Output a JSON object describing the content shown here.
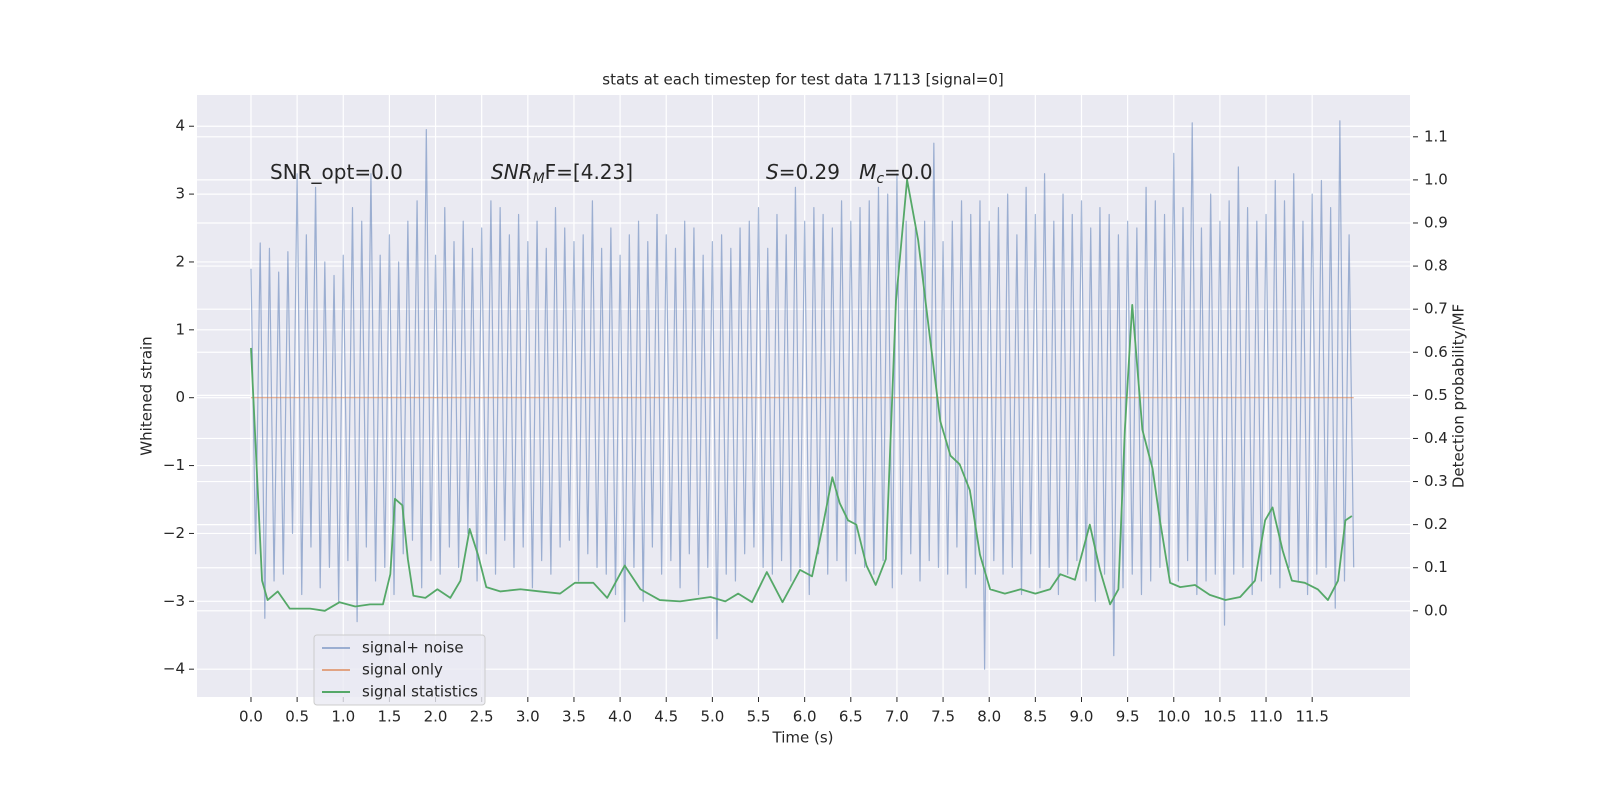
{
  "chart_data": {
    "type": "line",
    "title": "stats at each timestep for test data 17113 [signal=0]",
    "xlabel": "Time (s)",
    "ylabel": "Whitened strain",
    "y2label": "Detection probability/MF",
    "annotations": [
      [
        {
          "text": "SNR_opt=0.0"
        }
      ],
      [
        {
          "text": "SNR",
          "style": "italic"
        },
        {
          "text": "M",
          "style": "italic",
          "baseline": "sub"
        },
        {
          "text": "F=[4.23]"
        }
      ],
      [
        {
          "text": "S",
          "style": "italic"
        },
        {
          "text": "=0.29   "
        },
        {
          "text": "M",
          "style": "italic"
        },
        {
          "text": "c",
          "style": "italic",
          "baseline": "sub"
        },
        {
          "text": "=0.0"
        }
      ]
    ],
    "background": "#eaeaf2",
    "grid": true,
    "legend": "lower left",
    "xlim": [
      -0.585,
      12.56
    ],
    "ylim": [
      -4.41,
      4.46
    ],
    "y2lim": [
      -0.2,
      1.197
    ],
    "xticks": [
      {
        "value": 0,
        "label": "0.0"
      },
      0.5,
      {
        "value": 1,
        "label": "1.0"
      },
      1.5,
      {
        "value": 2,
        "label": "2.0"
      },
      2.5,
      {
        "value": 3,
        "label": "3.0"
      },
      3.5,
      {
        "value": 4,
        "label": "4.0"
      },
      4.5,
      {
        "value": 5,
        "label": "5.0"
      },
      5.5,
      {
        "value": 6,
        "label": "6.0"
      },
      6.5,
      {
        "value": 7,
        "label": "7.0"
      },
      7.5,
      {
        "value": 8,
        "label": "8.0"
      },
      8.5,
      {
        "value": 9,
        "label": "9.0"
      },
      9.5,
      {
        "value": 10,
        "label": "10.0"
      },
      10.5,
      {
        "value": 11,
        "label": "11.0"
      },
      11.5
    ],
    "yticks": [
      {
        "value": -4,
        "label": "−4"
      },
      {
        "value": -3,
        "label": "−3"
      },
      {
        "value": -2,
        "label": "−2"
      },
      {
        "value": -1,
        "label": "−1"
      },
      0,
      1,
      2,
      3,
      4
    ],
    "y2ticks": [
      {
        "value": 0,
        "label": "0.0"
      },
      0.1,
      0.2,
      0.3,
      0.4,
      0.5,
      0.6,
      0.7,
      0.8,
      0.9,
      {
        "value": 1,
        "label": "1.0"
      },
      1.1
    ],
    "series": [
      {
        "name": "signal+ noise",
        "color": "#4c72b0",
        "alpha": 0.5,
        "x": [
          0,
          0.05,
          0.1,
          0.15,
          0.2,
          0.25,
          0.3,
          0.35,
          0.4,
          0.45,
          0.5,
          0.55,
          0.6,
          0.65,
          0.7,
          0.75,
          0.8,
          0.85,
          0.9,
          0.95,
          1,
          1.05,
          1.1,
          1.15,
          1.2,
          1.25,
          1.3,
          1.35,
          1.4,
          1.45,
          1.5,
          1.55,
          1.6,
          1.65,
          1.7,
          1.75,
          1.8,
          1.85,
          1.9,
          1.95,
          2,
          2.05,
          2.1,
          2.15,
          2.2,
          2.25,
          2.3,
          2.35,
          2.4,
          2.45,
          2.5,
          2.55,
          2.6,
          2.65,
          2.7,
          2.75,
          2.8,
          2.85,
          2.9,
          2.95,
          3,
          3.05,
          3.1,
          3.15,
          3.2,
          3.25,
          3.3,
          3.35,
          3.4,
          3.45,
          3.5,
          3.55,
          3.6,
          3.65,
          3.7,
          3.75,
          3.8,
          3.85,
          3.9,
          3.95,
          4,
          4.05,
          4.1,
          4.15,
          4.2,
          4.25,
          4.3,
          4.35,
          4.4,
          4.45,
          4.5,
          4.55,
          4.6,
          4.65,
          4.7,
          4.75,
          4.8,
          4.85,
          4.9,
          4.95,
          5,
          5.05,
          5.1,
          5.15,
          5.2,
          5.25,
          5.3,
          5.35,
          5.4,
          5.45,
          5.5,
          5.55,
          5.6,
          5.65,
          5.7,
          5.75,
          5.8,
          5.85,
          5.9,
          5.95,
          6,
          6.05,
          6.1,
          6.15,
          6.2,
          6.25,
          6.3,
          6.35,
          6.4,
          6.45,
          6.5,
          6.55,
          6.6,
          6.65,
          6.7,
          6.75,
          6.8,
          6.85,
          6.9,
          6.95,
          7,
          7.05,
          7.1,
          7.15,
          7.2,
          7.25,
          7.3,
          7.35,
          7.4,
          7.45,
          7.5,
          7.55,
          7.6,
          7.65,
          7.7,
          7.75,
          7.8,
          7.85,
          7.9,
          7.95,
          8,
          8.05,
          8.1,
          8.15,
          8.2,
          8.25,
          8.3,
          8.35,
          8.4,
          8.45,
          8.5,
          8.55,
          8.6,
          8.65,
          8.7,
          8.75,
          8.8,
          8.85,
          8.9,
          8.95,
          9,
          9.05,
          9.1,
          9.15,
          9.2,
          9.25,
          9.3,
          9.35,
          9.4,
          9.45,
          9.5,
          9.55,
          9.6,
          9.65,
          9.7,
          9.75,
          9.8,
          9.85,
          9.9,
          9.95,
          10,
          10.05,
          10.1,
          10.15,
          10.2,
          10.25,
          10.3,
          10.35,
          10.4,
          10.45,
          10.5,
          10.55,
          10.6,
          10.65,
          10.7,
          10.75,
          10.8,
          10.85,
          10.9,
          10.95,
          11,
          11.05,
          11.1,
          11.15,
          11.2,
          11.25,
          11.3,
          11.35,
          11.4,
          11.45,
          11.5,
          11.55,
          11.6,
          11.65,
          11.7,
          11.75,
          11.8,
          11.85,
          11.9,
          11.95
        ],
        "values": [
          1.9,
          -2.3,
          2.28,
          -3.25,
          2.2,
          -2.7,
          1.85,
          -2.6,
          2.15,
          -2.0,
          3.3,
          -2.9,
          2.4,
          -2.2,
          3.1,
          -2.8,
          2.0,
          -2.5,
          1.8,
          -3.0,
          2.1,
          -2.4,
          2.8,
          -3.3,
          2.6,
          -2.2,
          3.3,
          -2.7,
          2.1,
          -2.5,
          2.4,
          -2.9,
          2.0,
          -2.3,
          2.6,
          -2.1,
          2.9,
          -2.8,
          3.95,
          -2.4,
          2.1,
          -2.6,
          2.8,
          -2.2,
          2.3,
          -2.5,
          2.6,
          -2.0,
          2.2,
          -2.7,
          2.5,
          -2.3,
          2.9,
          -2.6,
          2.8,
          -2.1,
          2.4,
          -2.5,
          2.7,
          -2.2,
          2.3,
          -2.8,
          2.6,
          -2.4,
          2.2,
          -2.6,
          2.8,
          -2.2,
          2.5,
          -2.1,
          2.3,
          -2.7,
          2.4,
          -2.3,
          2.9,
          -2.5,
          2.2,
          -2.6,
          2.5,
          -2.9,
          2.1,
          -3.3,
          2.4,
          -2.5,
          2.6,
          -3.0,
          2.3,
          -2.2,
          2.7,
          -2.6,
          2.4,
          -2.4,
          2.2,
          -2.8,
          2.6,
          -2.3,
          2.5,
          -2.9,
          2.1,
          -2.5,
          2.3,
          -3.55,
          2.4,
          -2.6,
          2.2,
          -2.7,
          2.5,
          -2.3,
          2.6,
          -2.2,
          2.8,
          -2.5,
          2.2,
          -2.6,
          2.7,
          -2.4,
          2.4,
          -2.7,
          3.1,
          -2.5,
          2.6,
          -2.9,
          2.8,
          -2.3,
          2.7,
          -2.6,
          2.5,
          -2.4,
          2.9,
          -2.7,
          2.6,
          -2.3,
          2.8,
          -2.5,
          2.9,
          -2.6,
          3.1,
          -2.4,
          3.0,
          -2.8,
          3.3,
          -2.6,
          2.6,
          -2.3,
          2.5,
          -2.7,
          2.6,
          -2.4,
          3.75,
          -2.5,
          2.3,
          -2.6,
          2.6,
          -2.2,
          2.9,
          -2.8,
          2.7,
          -2.6,
          2.9,
          -4.0,
          2.6,
          -2.4,
          2.8,
          -2.6,
          3.0,
          -2.5,
          2.4,
          -2.9,
          3.1,
          -2.3,
          2.7,
          -2.8,
          3.3,
          -2.5,
          2.6,
          -2.9,
          3.0,
          -2.6,
          2.7,
          -2.4,
          2.9,
          -2.7,
          2.5,
          -3.0,
          2.8,
          -2.6,
          2.7,
          -3.8,
          2.4,
          -2.8,
          2.6,
          -2.6,
          2.5,
          -2.9,
          3.1,
          -2.7,
          2.9,
          -2.5,
          2.7,
          -2.6,
          3.6,
          -2.7,
          2.8,
          -2.4,
          4.05,
          -2.9,
          2.5,
          -2.7,
          3.0,
          -2.6,
          2.6,
          -3.35,
          2.9,
          -2.6,
          3.4,
          -2.5,
          2.8,
          -2.9,
          2.6,
          -2.7,
          2.7,
          -2.6,
          3.2,
          -2.8,
          2.9,
          -2.5,
          3.3,
          -2.7,
          2.6,
          -2.9,
          3.0,
          -2.6,
          3.2,
          -2.5,
          2.8,
          -3.1,
          4.08,
          -2.7,
          2.4,
          -2.5
        ]
      },
      {
        "name": "signal only",
        "color": "#dd8452",
        "alpha": 0.7,
        "x": [
          0,
          11.95
        ],
        "values": [
          0,
          0
        ]
      },
      {
        "name": "signal statistics",
        "color": "#55a868",
        "alpha": 1,
        "axis": "y2",
        "x": [
          0,
          0.12,
          0.18,
          0.29,
          0.42,
          0.64,
          0.8,
          0.96,
          1.13,
          1.29,
          1.43,
          1.51,
          1.56,
          1.64,
          1.7,
          1.76,
          1.89,
          2.02,
          2.16,
          2.27,
          2.37,
          2.46,
          2.55,
          2.7,
          2.92,
          3.13,
          3.35,
          3.51,
          3.71,
          3.86,
          4.05,
          4.22,
          4.43,
          4.65,
          4.98,
          5.14,
          5.28,
          5.43,
          5.59,
          5.76,
          5.95,
          6.08,
          6.19,
          6.3,
          6.38,
          6.47,
          6.56,
          6.67,
          6.77,
          6.88,
          6.99,
          7.11,
          7.23,
          7.36,
          7.47,
          7.58,
          7.68,
          7.79,
          7.9,
          8.01,
          8.17,
          8.34,
          8.5,
          8.66,
          8.77,
          8.93,
          9.09,
          9.2,
          9.31,
          9.4,
          9.47,
          9.55,
          9.66,
          9.77,
          9.85,
          9.96,
          10.07,
          10.23,
          10.39,
          10.56,
          10.72,
          10.88,
          10.99,
          11.07,
          11.18,
          11.28,
          11.42,
          11.56,
          11.67,
          11.78,
          11.86,
          11.93
        ],
        "values": [
          0.61,
          0.07,
          0.025,
          0.045,
          0.005,
          0.005,
          0.0,
          0.02,
          0.01,
          0.015,
          0.015,
          0.085,
          0.26,
          0.245,
          0.12,
          0.035,
          0.03,
          0.05,
          0.03,
          0.07,
          0.19,
          0.13,
          0.055,
          0.045,
          0.05,
          0.045,
          0.04,
          0.065,
          0.065,
          0.03,
          0.105,
          0.05,
          0.025,
          0.022,
          0.032,
          0.022,
          0.04,
          0.02,
          0.09,
          0.02,
          0.095,
          0.08,
          0.19,
          0.31,
          0.25,
          0.21,
          0.2,
          0.105,
          0.06,
          0.12,
          0.72,
          1.0,
          0.86,
          0.63,
          0.44,
          0.36,
          0.34,
          0.28,
          0.13,
          0.05,
          0.04,
          0.05,
          0.04,
          0.05,
          0.085,
          0.072,
          0.2,
          0.095,
          0.015,
          0.05,
          0.42,
          0.71,
          0.42,
          0.33,
          0.21,
          0.065,
          0.055,
          0.06,
          0.037,
          0.025,
          0.032,
          0.07,
          0.21,
          0.24,
          0.14,
          0.07,
          0.065,
          0.05,
          0.025,
          0.07,
          0.21,
          0.22
        ]
      }
    ]
  }
}
